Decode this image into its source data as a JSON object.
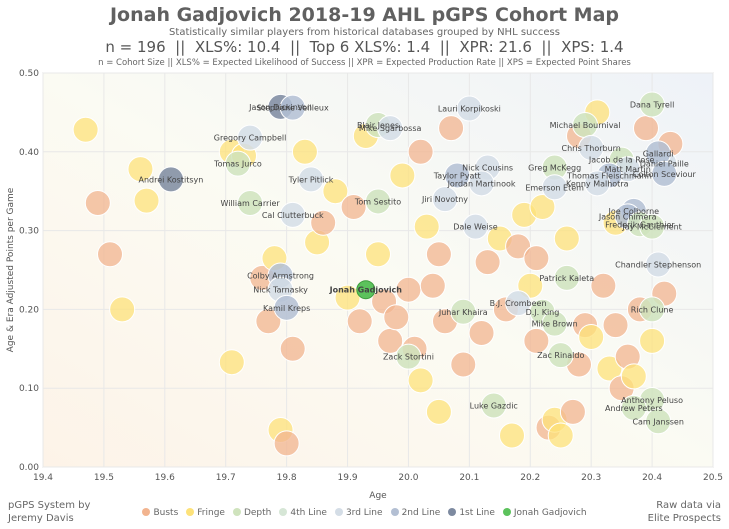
{
  "title": "Jonah Gadjovich 2018-19 AHL pGPS Cohort Map",
  "subtitle": "Statistically similar players from historical databases grouped by NHL success",
  "stats": {
    "n": "n = 196",
    "xls": "XLS%: 10.4",
    "top6": "Top 6 XLS%: 1.4",
    "xpr": "XPR: 21.6",
    "xps": "XPS: 1.4",
    "separator": "||"
  },
  "legend_note": "n = Cohort Size || XLS% = Expected Likelihood of Success || XPR = Expected Production Rate || XPS = Expected Point Shares",
  "footer_left": [
    "pGPS System by",
    "Jeremy Davis"
  ],
  "footer_right": [
    "Raw data via",
    "Elite Prospects"
  ],
  "colors": {
    "Busts": "#f2b48f",
    "Fringe": "#fde27a",
    "Depth": "#cfe3bd",
    "4th Line": "#d6e6d6",
    "3rd Line": "#d4dde6",
    "2nd Line": "#b3bfd3",
    "1st Line": "#7d8aa0",
    "Jonah Gadjovich": "#5cc25c"
  },
  "chart_data": {
    "type": "scatter",
    "title": "Jonah Gadjovich 2018-19 AHL pGPS Cohort Map",
    "xlabel": "Age",
    "ylabel": "Age & Era Adjusted Points per Game",
    "xlim": [
      19.4,
      20.5
    ],
    "ylim": [
      0.0,
      0.5
    ],
    "xticks": [
      "19.4",
      "19.5",
      "19.6",
      "19.7",
      "19.8",
      "19.9",
      "20.0",
      "20.1",
      "20.2",
      "20.3",
      "20.4",
      "20.5"
    ],
    "yticks": [
      "0.00",
      "0.10",
      "0.20",
      "0.30",
      "0.40",
      "0.50"
    ],
    "legend": [
      "Busts",
      "Fringe",
      "Depth",
      "4th Line",
      "3rd Line",
      "2nd Line",
      "1st Line",
      "Jonah Gadjovich"
    ],
    "labeled_points": [
      {
        "name": "Jason Dickinson",
        "x": 19.79,
        "y": 0.457,
        "cat": "1st Line"
      },
      {
        "name": "Stephane Veilleux",
        "x": 19.81,
        "y": 0.456,
        "cat": "2nd Line"
      },
      {
        "name": "Lauri Korpikoski",
        "x": 20.1,
        "y": 0.455,
        "cat": "3rd Line"
      },
      {
        "name": "Dana Tyrell",
        "x": 20.4,
        "y": 0.46,
        "cat": "Depth"
      },
      {
        "name": "Blair Jones",
        "x": 19.95,
        "y": 0.434,
        "cat": "Depth"
      },
      {
        "name": "Mike Sgarbossa",
        "x": 19.97,
        "y": 0.43,
        "cat": "3rd Line"
      },
      {
        "name": "Michael Bournival",
        "x": 20.29,
        "y": 0.434,
        "cat": "Depth"
      },
      {
        "name": "Gregory Campbell",
        "x": 19.74,
        "y": 0.418,
        "cat": "3rd Line"
      },
      {
        "name": "Chris Thorburn",
        "x": 20.3,
        "y": 0.405,
        "cat": "3rd Line"
      },
      {
        "name": "Daniel Paille",
        "x": 20.42,
        "y": 0.385,
        "cat": "3rd Line"
      },
      {
        "name": "Jacob de la Rose",
        "x": 20.35,
        "y": 0.39,
        "cat": "Depth"
      },
      {
        "name": "Gallardi",
        "x": 20.41,
        "y": 0.398,
        "cat": "2nd Line"
      },
      {
        "name": "Matt Martin",
        "x": 20.36,
        "y": 0.378,
        "cat": "3rd Line"
      },
      {
        "name": "Thomas Fleischmann",
        "x": 20.33,
        "y": 0.37,
        "cat": "2nd Line"
      },
      {
        "name": "Colton Sceviour",
        "x": 20.42,
        "y": 0.372,
        "cat": "2nd Line"
      },
      {
        "name": "Tomas Jurco",
        "x": 19.72,
        "y": 0.385,
        "cat": "Depth"
      },
      {
        "name": "Nick Cousins",
        "x": 20.13,
        "y": 0.38,
        "cat": "3rd Line"
      },
      {
        "name": "Greg McKegg",
        "x": 20.24,
        "y": 0.38,
        "cat": "Depth"
      },
      {
        "name": "Andrei Kostitsyn",
        "x": 19.61,
        "y": 0.365,
        "cat": "1st Line"
      },
      {
        "name": "Tyler Pitlick",
        "x": 19.84,
        "y": 0.365,
        "cat": "3rd Line"
      },
      {
        "name": "Taylor Pyatt",
        "x": 20.08,
        "y": 0.37,
        "cat": "2nd Line"
      },
      {
        "name": "Jordan Martinook",
        "x": 20.12,
        "y": 0.36,
        "cat": "3rd Line"
      },
      {
        "name": "Emerson Etem",
        "x": 20.24,
        "y": 0.355,
        "cat": "3rd Line"
      },
      {
        "name": "Kenny Malhotra",
        "x": 20.31,
        "y": 0.36,
        "cat": "3rd Line"
      },
      {
        "name": "Jiri Novotny",
        "x": 20.06,
        "y": 0.34,
        "cat": "3rd Line"
      },
      {
        "name": "Tom Sestito",
        "x": 19.95,
        "y": 0.337,
        "cat": "Depth"
      },
      {
        "name": "William Carrier",
        "x": 19.74,
        "y": 0.335,
        "cat": "Depth"
      },
      {
        "name": "Joe Colborne",
        "x": 20.37,
        "y": 0.325,
        "cat": "2nd Line"
      },
      {
        "name": "Cal Clutterbuck",
        "x": 19.81,
        "y": 0.32,
        "cat": "3rd Line"
      },
      {
        "name": "Jason Chimera",
        "x": 20.36,
        "y": 0.318,
        "cat": "2nd Line"
      },
      {
        "name": "Frederik Gauthier",
        "x": 20.38,
        "y": 0.308,
        "cat": "Depth"
      },
      {
        "name": "Jay McClement",
        "x": 20.4,
        "y": 0.305,
        "cat": "Depth"
      },
      {
        "name": "Dale Weise",
        "x": 20.11,
        "y": 0.305,
        "cat": "3rd Line"
      },
      {
        "name": "Chandler Stephenson",
        "x": 20.41,
        "y": 0.257,
        "cat": "3rd Line"
      },
      {
        "name": "Colby Armstrong",
        "x": 19.79,
        "y": 0.243,
        "cat": "2nd Line"
      },
      {
        "name": "Patrick Kaleta",
        "x": 20.26,
        "y": 0.24,
        "cat": "Depth"
      },
      {
        "name": "Jonah Gadjovich",
        "x": 19.93,
        "y": 0.225,
        "cat": "Jonah Gadjovich"
      },
      {
        "name": "Nick Tarnasky",
        "x": 19.79,
        "y": 0.225,
        "cat": "3rd Line"
      },
      {
        "name": "B.J. Crombeen",
        "x": 20.18,
        "y": 0.208,
        "cat": "3rd Line"
      },
      {
        "name": "Kamil Kreps",
        "x": 19.8,
        "y": 0.202,
        "cat": "2nd Line"
      },
      {
        "name": "Juhar Khaira",
        "x": 20.09,
        "y": 0.197,
        "cat": "Depth"
      },
      {
        "name": "D.J. King",
        "x": 20.22,
        "y": 0.197,
        "cat": "Depth"
      },
      {
        "name": "Rich Clune",
        "x": 20.4,
        "y": 0.2,
        "cat": "Depth"
      },
      {
        "name": "Mike Brown",
        "x": 20.24,
        "y": 0.182,
        "cat": "Depth"
      },
      {
        "name": "Zack Stortini",
        "x": 20.0,
        "y": 0.14,
        "cat": "Depth"
      },
      {
        "name": "Zac Rinaldo",
        "x": 20.25,
        "y": 0.142,
        "cat": "Depth"
      },
      {
        "name": "Anthony Peluso",
        "x": 20.4,
        "y": 0.085,
        "cat": "Depth"
      },
      {
        "name": "Luke Gazdic",
        "x": 20.14,
        "y": 0.078,
        "cat": "Depth"
      },
      {
        "name": "Andrew Peters",
        "x": 20.37,
        "y": 0.075,
        "cat": "Depth"
      },
      {
        "name": "Cam Janssen",
        "x": 20.41,
        "y": 0.058,
        "cat": "Depth"
      }
    ],
    "other_points": [
      {
        "x": 19.47,
        "y": 0.428,
        "cat": "Fringe"
      },
      {
        "x": 19.49,
        "y": 0.335,
        "cat": "Busts"
      },
      {
        "x": 19.51,
        "y": 0.27,
        "cat": "Busts"
      },
      {
        "x": 19.53,
        "y": 0.2,
        "cat": "Fringe"
      },
      {
        "x": 19.56,
        "y": 0.378,
        "cat": "Fringe"
      },
      {
        "x": 19.57,
        "y": 0.338,
        "cat": "Fringe"
      },
      {
        "x": 19.71,
        "y": 0.4,
        "cat": "Fringe"
      },
      {
        "x": 19.71,
        "y": 0.133,
        "cat": "Fringe"
      },
      {
        "x": 19.73,
        "y": 0.395,
        "cat": "Fringe"
      },
      {
        "x": 19.76,
        "y": 0.24,
        "cat": "Busts"
      },
      {
        "x": 19.77,
        "y": 0.185,
        "cat": "Busts"
      },
      {
        "x": 19.78,
        "y": 0.265,
        "cat": "Fringe"
      },
      {
        "x": 19.79,
        "y": 0.047,
        "cat": "Fringe"
      },
      {
        "x": 19.8,
        "y": 0.03,
        "cat": "Busts"
      },
      {
        "x": 19.81,
        "y": 0.15,
        "cat": "Busts"
      },
      {
        "x": 19.83,
        "y": 0.4,
        "cat": "Fringe"
      },
      {
        "x": 19.85,
        "y": 0.285,
        "cat": "Fringe"
      },
      {
        "x": 19.86,
        "y": 0.31,
        "cat": "Busts"
      },
      {
        "x": 19.88,
        "y": 0.35,
        "cat": "Fringe"
      },
      {
        "x": 19.9,
        "y": 0.215,
        "cat": "Fringe"
      },
      {
        "x": 19.91,
        "y": 0.33,
        "cat": "Busts"
      },
      {
        "x": 19.92,
        "y": 0.185,
        "cat": "Busts"
      },
      {
        "x": 19.93,
        "y": 0.42,
        "cat": "Fringe"
      },
      {
        "x": 19.95,
        "y": 0.27,
        "cat": "Fringe"
      },
      {
        "x": 19.96,
        "y": 0.21,
        "cat": "Busts"
      },
      {
        "x": 19.97,
        "y": 0.16,
        "cat": "Busts"
      },
      {
        "x": 19.98,
        "y": 0.19,
        "cat": "Busts"
      },
      {
        "x": 19.99,
        "y": 0.37,
        "cat": "Fringe"
      },
      {
        "x": 20.0,
        "y": 0.225,
        "cat": "Busts"
      },
      {
        "x": 20.01,
        "y": 0.15,
        "cat": "Busts"
      },
      {
        "x": 20.02,
        "y": 0.11,
        "cat": "Fringe"
      },
      {
        "x": 20.03,
        "y": 0.305,
        "cat": "Fringe"
      },
      {
        "x": 20.04,
        "y": 0.23,
        "cat": "Busts"
      },
      {
        "x": 20.05,
        "y": 0.07,
        "cat": "Fringe"
      },
      {
        "x": 20.06,
        "y": 0.185,
        "cat": "Busts"
      },
      {
        "x": 20.07,
        "y": 0.43,
        "cat": "Busts"
      },
      {
        "x": 20.09,
        "y": 0.13,
        "cat": "Busts"
      },
      {
        "x": 20.12,
        "y": 0.17,
        "cat": "Busts"
      },
      {
        "x": 20.13,
        "y": 0.26,
        "cat": "Busts"
      },
      {
        "x": 20.15,
        "y": 0.29,
        "cat": "Fringe"
      },
      {
        "x": 20.17,
        "y": 0.04,
        "cat": "Fringe"
      },
      {
        "x": 20.18,
        "y": 0.28,
        "cat": "Busts"
      },
      {
        "x": 20.19,
        "y": 0.32,
        "cat": "Fringe"
      },
      {
        "x": 20.2,
        "y": 0.23,
        "cat": "Fringe"
      },
      {
        "x": 20.21,
        "y": 0.16,
        "cat": "Busts"
      },
      {
        "x": 20.22,
        "y": 0.33,
        "cat": "Fringe"
      },
      {
        "x": 20.23,
        "y": 0.05,
        "cat": "Busts"
      },
      {
        "x": 20.24,
        "y": 0.06,
        "cat": "Fringe"
      },
      {
        "x": 20.25,
        "y": 0.04,
        "cat": "Fringe"
      },
      {
        "x": 20.26,
        "y": 0.29,
        "cat": "Fringe"
      },
      {
        "x": 20.27,
        "y": 0.07,
        "cat": "Busts"
      },
      {
        "x": 20.28,
        "y": 0.13,
        "cat": "Busts"
      },
      {
        "x": 20.29,
        "y": 0.18,
        "cat": "Busts"
      },
      {
        "x": 20.3,
        "y": 0.165,
        "cat": "Fringe"
      },
      {
        "x": 20.31,
        "y": 0.45,
        "cat": "Fringe"
      },
      {
        "x": 20.32,
        "y": 0.23,
        "cat": "Busts"
      },
      {
        "x": 20.33,
        "y": 0.125,
        "cat": "Fringe"
      },
      {
        "x": 20.34,
        "y": 0.18,
        "cat": "Busts"
      },
      {
        "x": 20.35,
        "y": 0.1,
        "cat": "Busts"
      },
      {
        "x": 20.36,
        "y": 0.14,
        "cat": "Busts"
      },
      {
        "x": 20.37,
        "y": 0.115,
        "cat": "Fringe"
      },
      {
        "x": 20.38,
        "y": 0.2,
        "cat": "Busts"
      },
      {
        "x": 20.39,
        "y": 0.43,
        "cat": "Busts"
      },
      {
        "x": 20.4,
        "y": 0.16,
        "cat": "Fringe"
      },
      {
        "x": 20.42,
        "y": 0.22,
        "cat": "Busts"
      },
      {
        "x": 20.43,
        "y": 0.41,
        "cat": "Busts"
      },
      {
        "x": 20.05,
        "y": 0.27,
        "cat": "Busts"
      },
      {
        "x": 20.16,
        "y": 0.2,
        "cat": "Busts"
      },
      {
        "x": 20.21,
        "y": 0.265,
        "cat": "Busts"
      },
      {
        "x": 20.28,
        "y": 0.42,
        "cat": "Busts"
      },
      {
        "x": 20.34,
        "y": 0.31,
        "cat": "Fringe"
      },
      {
        "x": 20.02,
        "y": 0.4,
        "cat": "Busts"
      }
    ]
  }
}
